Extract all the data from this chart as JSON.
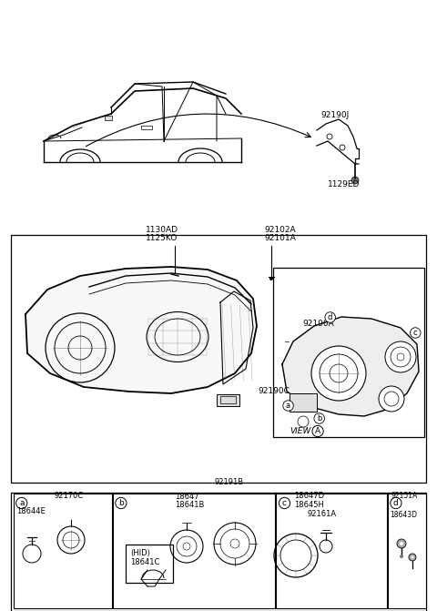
{
  "bg_color": "#ffffff",
  "line_color": "#000000",
  "label_92190J": "92190J",
  "label_1129ED": "1129ED",
  "label_1130AD": "1130AD",
  "label_1125KO": "1125KO",
  "label_92102A": "92102A",
  "label_92101A": "92101A",
  "label_92190A": "92190A",
  "label_92190C": "92190C",
  "label_VIEW": "VIEW",
  "label_A": "A",
  "label_a": "a",
  "label_b": "b",
  "label_c": "c",
  "label_d": "d",
  "label_92170C": "92170C",
  "label_18644E": "18644E",
  "label_HID": "(HID)",
  "label_18641C": "18641C",
  "label_18647": "18647",
  "label_18641B": "18641B",
  "label_92191B": "92191B",
  "label_18647D": "18647D",
  "label_18645H": "18645H",
  "label_92161A": "92161A",
  "label_92151A": "92151A",
  "label_18643D": "18643D"
}
